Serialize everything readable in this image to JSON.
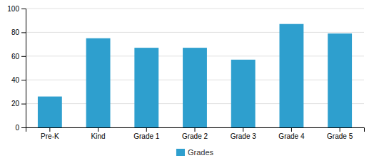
{
  "chart_data": {
    "type": "bar",
    "categories": [
      "Pre-K",
      "Kind",
      "Grade 1",
      "Grade 2",
      "Grade 3",
      "Grade 4",
      "Grade 5"
    ],
    "series": [
      {
        "name": "Grades",
        "color": "#2e9fce",
        "values": [
          26,
          75,
          67,
          67,
          57,
          87,
          79
        ]
      }
    ],
    "ylim": [
      0,
      100
    ],
    "yticks": [
      0,
      20,
      40,
      60,
      80,
      100
    ],
    "grid": true,
    "legend": "bottom"
  }
}
